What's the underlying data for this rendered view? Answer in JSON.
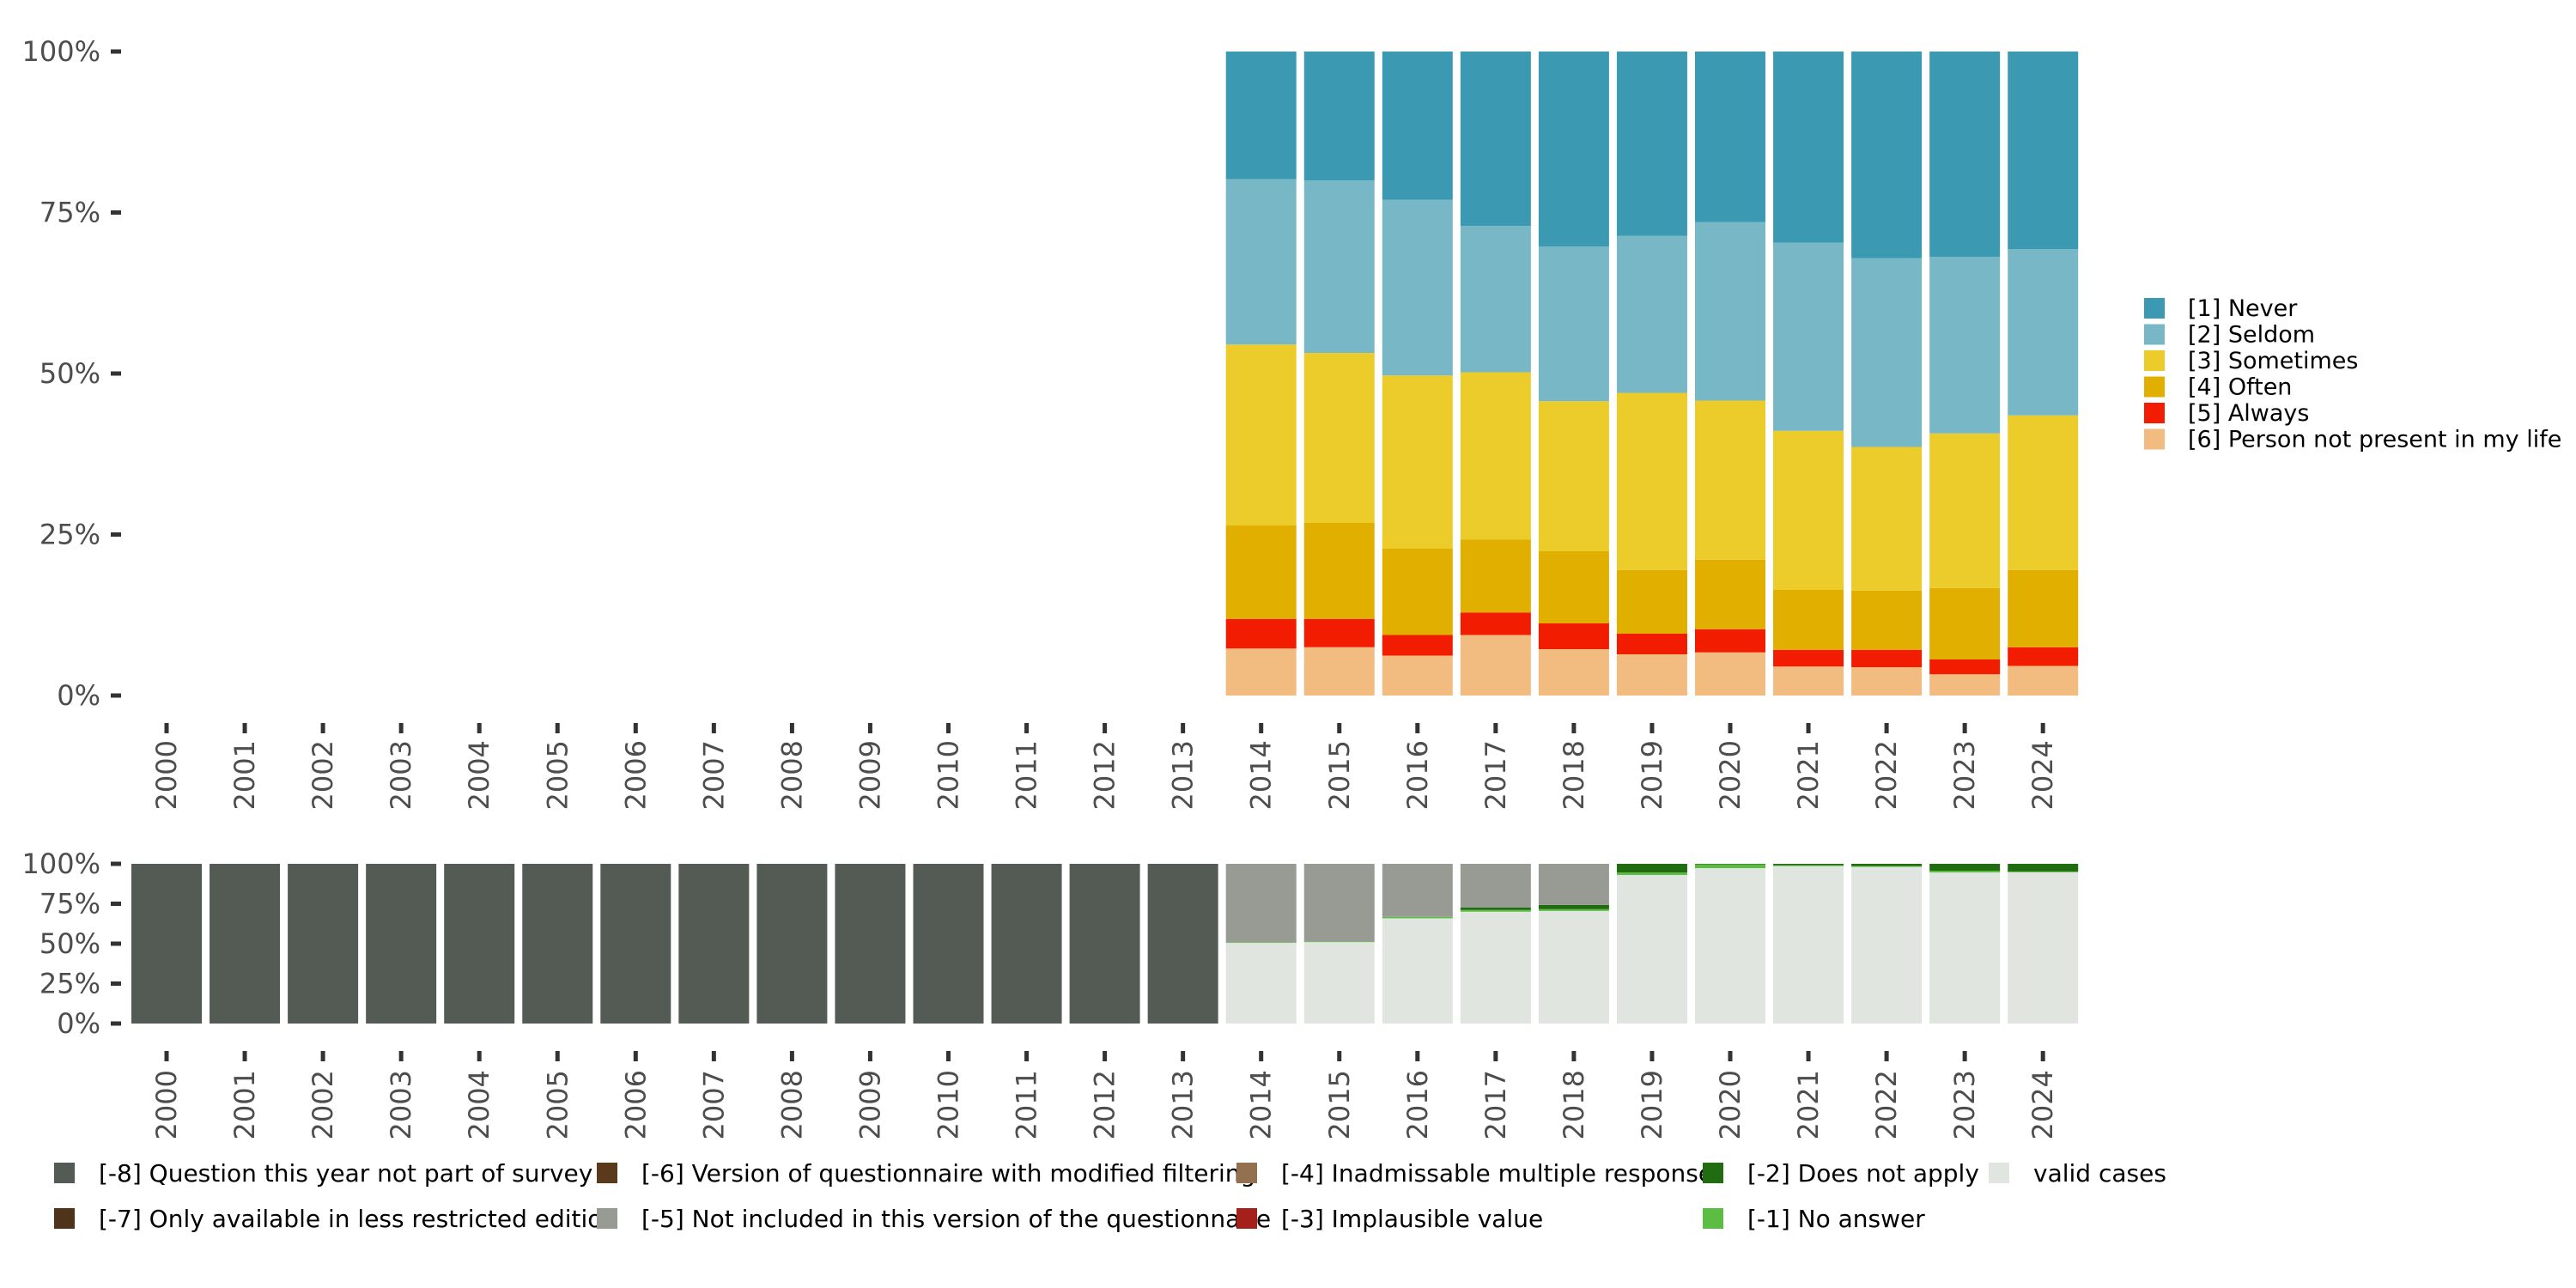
{
  "chart_data": [
    {
      "type": "bar",
      "stacked": true,
      "panel": "top",
      "title": "",
      "xlabel": "",
      "ylabel": "",
      "ylim": [
        0,
        100
      ],
      "yticks": [
        "0%",
        "25%",
        "50%",
        "75%",
        "100%"
      ],
      "categories": [
        "2000",
        "2001",
        "2002",
        "2003",
        "2004",
        "2005",
        "2006",
        "2007",
        "2008",
        "2009",
        "2010",
        "2011",
        "2012",
        "2013",
        "2014",
        "2015",
        "2016",
        "2017",
        "2018",
        "2019",
        "2020",
        "2021",
        "2022",
        "2023",
        "2024"
      ],
      "legend_position": "right",
      "series": [
        {
          "name": "[6] Person not present in my life",
          "color": "#F2BC80",
          "values": [
            null,
            null,
            null,
            null,
            null,
            null,
            null,
            null,
            null,
            null,
            null,
            null,
            null,
            null,
            7.3,
            7.5,
            6.2,
            9.4,
            7.2,
            6.4,
            6.7,
            4.5,
            4.4,
            3.3,
            4.6
          ]
        },
        {
          "name": "[5] Always",
          "color": "#F21D00",
          "values": [
            null,
            null,
            null,
            null,
            null,
            null,
            null,
            null,
            null,
            null,
            null,
            null,
            null,
            null,
            4.6,
            4.4,
            3.2,
            3.5,
            4.0,
            3.2,
            3.6,
            2.6,
            2.7,
            2.3,
            2.9
          ]
        },
        {
          "name": "[4] Often",
          "color": "#E0AF00",
          "values": [
            null,
            null,
            null,
            null,
            null,
            null,
            null,
            null,
            null,
            null,
            null,
            null,
            null,
            null,
            14.5,
            14.9,
            13.4,
            11.3,
            11.2,
            9.9,
            10.8,
            9.3,
            9.2,
            11.1,
            12.0
          ]
        },
        {
          "name": "[3] Sometimes",
          "color": "#EBCC2A",
          "values": [
            null,
            null,
            null,
            null,
            null,
            null,
            null,
            null,
            null,
            null,
            null,
            null,
            null,
            null,
            28.1,
            26.4,
            26.9,
            26.0,
            23.3,
            27.5,
            24.7,
            24.7,
            22.3,
            24.0,
            24.0
          ]
        },
        {
          "name": "[2] Seldom",
          "color": "#78B7C5",
          "values": [
            null,
            null,
            null,
            null,
            null,
            null,
            null,
            null,
            null,
            null,
            null,
            null,
            null,
            null,
            25.7,
            26.8,
            27.3,
            22.7,
            24.0,
            24.4,
            27.7,
            29.2,
            29.3,
            27.4,
            25.8
          ]
        },
        {
          "name": "[1] Never",
          "color": "#3B9AB2",
          "values": [
            null,
            null,
            null,
            null,
            null,
            null,
            null,
            null,
            null,
            null,
            null,
            null,
            null,
            null,
            19.8,
            20.0,
            23.0,
            27.1,
            30.3,
            28.6,
            26.5,
            29.7,
            32.1,
            31.9,
            30.7
          ]
        }
      ],
      "legend": [
        {
          "label": "[1] Never",
          "color": "#3B9AB2"
        },
        {
          "label": "[2] Seldom",
          "color": "#78B7C5"
        },
        {
          "label": "[3] Sometimes",
          "color": "#EBCC2A"
        },
        {
          "label": "[4] Often",
          "color": "#E0AF00"
        },
        {
          "label": "[5] Always",
          "color": "#F21D00"
        },
        {
          "label": "[6] Person not present in my life",
          "color": "#F2BC80"
        }
      ]
    },
    {
      "type": "bar",
      "stacked": true,
      "panel": "bottom",
      "title": "",
      "xlabel": "",
      "ylabel": "",
      "ylim": [
        0,
        100
      ],
      "yticks": [
        "0%",
        "25%",
        "50%",
        "75%",
        "100%"
      ],
      "categories": [
        "2000",
        "2001",
        "2002",
        "2003",
        "2004",
        "2005",
        "2006",
        "2007",
        "2008",
        "2009",
        "2010",
        "2011",
        "2012",
        "2013",
        "2014",
        "2015",
        "2016",
        "2017",
        "2018",
        "2019",
        "2020",
        "2021",
        "2022",
        "2023",
        "2024"
      ],
      "legend_position": "bottom",
      "series": [
        {
          "name": "valid cases",
          "color": "#E0E5E0",
          "values": [
            0,
            0,
            0,
            0,
            0,
            0,
            0,
            0,
            0,
            0,
            0,
            0,
            0,
            0,
            50.5,
            51.0,
            65.9,
            70.0,
            70.5,
            93.0,
            97.3,
            98.6,
            98.1,
            94.6,
            94.7
          ]
        },
        {
          "name": "[-1] No answer",
          "color": "#5BBD41",
          "values": [
            0,
            0,
            0,
            0,
            0,
            0,
            0,
            0,
            0,
            0,
            0,
            0,
            0,
            0,
            0.4,
            0.4,
            0.9,
            1.1,
            1.1,
            1.6,
            2.3,
            0.5,
            0.5,
            1.1,
            0.5
          ]
        },
        {
          "name": "[-2] Does not apply",
          "color": "#216C10",
          "values": [
            0,
            0,
            0,
            0,
            0,
            0,
            0,
            0,
            0,
            0,
            0,
            0,
            0,
            0,
            0,
            0,
            0,
            1.6,
            2.7,
            5.4,
            0.4,
            0.9,
            1.4,
            4.3,
            4.8
          ]
        },
        {
          "name": "[-3] Implausible value",
          "color": "#A5201B",
          "values": [
            0,
            0,
            0,
            0,
            0,
            0,
            0,
            0,
            0,
            0,
            0,
            0,
            0,
            0,
            0,
            0,
            0,
            0,
            0,
            0,
            0,
            0,
            0,
            0,
            0
          ]
        },
        {
          "name": "[-4] Inadmissable multiple response",
          "color": "#93704F",
          "values": [
            0,
            0,
            0,
            0,
            0,
            0,
            0,
            0,
            0,
            0,
            0,
            0,
            0,
            0,
            0,
            0,
            0,
            0,
            0,
            0,
            0,
            0,
            0,
            0,
            0
          ]
        },
        {
          "name": "[-5] Not included in this version of the questionnaire",
          "color": "#979B94",
          "values": [
            0,
            0,
            0,
            0,
            0,
            0,
            0,
            0,
            0,
            0,
            0,
            0,
            0,
            0,
            49.1,
            48.6,
            33.2,
            27.3,
            25.7,
            0,
            0,
            0,
            0,
            0,
            0
          ]
        },
        {
          "name": "[-6] Version of questionnaire with modified filtering",
          "color": "#5A3A1B",
          "values": [
            0,
            0,
            0,
            0,
            0,
            0,
            0,
            0,
            0,
            0,
            0,
            0,
            0,
            0,
            0,
            0,
            0,
            0,
            0,
            0,
            0,
            0,
            0,
            0,
            0
          ]
        },
        {
          "name": "[-7] Only available in less restricted edition",
          "color": "#4F331A",
          "values": [
            0,
            0,
            0,
            0,
            0,
            0,
            0,
            0,
            0,
            0,
            0,
            0,
            0,
            0,
            0,
            0,
            0,
            0,
            0,
            0,
            0,
            0,
            0,
            0,
            0
          ]
        },
        {
          "name": "[-8] Question this year not part of survey",
          "color": "#545B55",
          "values": [
            100,
            100,
            100,
            100,
            100,
            100,
            100,
            100,
            100,
            100,
            100,
            100,
            100,
            100,
            0,
            0,
            0,
            0,
            0,
            0,
            0,
            0,
            0,
            0,
            0
          ]
        }
      ],
      "legend": [
        {
          "label": "[-8] Question this year not part of survey",
          "color": "#545B55"
        },
        {
          "label": "[-7] Only available in less restricted edition",
          "color": "#4F331A"
        },
        {
          "label": "[-6] Version of questionnaire with modified filtering",
          "color": "#5A3A1B"
        },
        {
          "label": "[-5] Not included in this version of the questionnaire",
          "color": "#979B94"
        },
        {
          "label": "[-4] Inadmissable multiple response",
          "color": "#93704F"
        },
        {
          "label": "[-3] Implausible value",
          "color": "#A5201B"
        },
        {
          "label": "[-2] Does not apply",
          "color": "#216C10"
        },
        {
          "label": "[-1] No answer",
          "color": "#5BBD41"
        },
        {
          "label": "valid cases",
          "color": "#E0E5E0"
        }
      ]
    }
  ]
}
